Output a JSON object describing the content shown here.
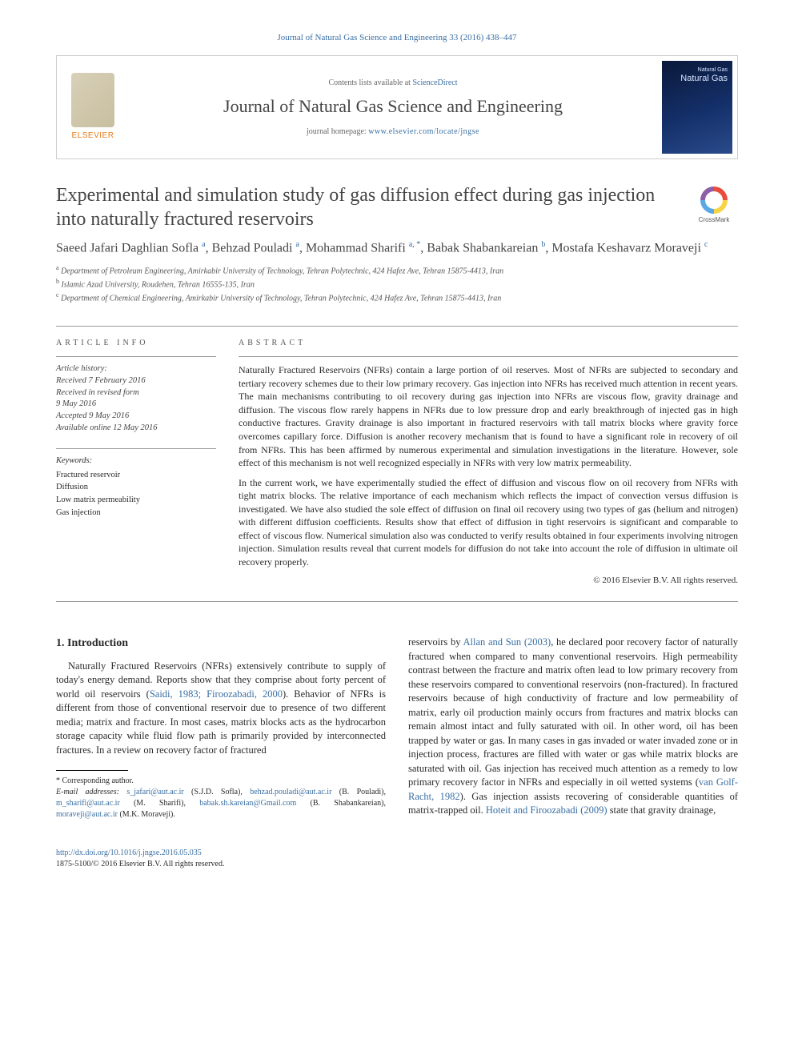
{
  "citation": "Journal of Natural Gas Science and Engineering 33 (2016) 438–447",
  "masthead": {
    "publisher": "ELSEVIER",
    "contents_prefix": "Contents lists available at ",
    "contents_link": "ScienceDirect",
    "journal_name": "Journal of Natural Gas Science and Engineering",
    "homepage_prefix": "journal homepage: ",
    "homepage_url": "www.elsevier.com/locate/jngse",
    "cover_small": "Natural Gas",
    "cover_big": "Natural Gas"
  },
  "crossmark_label": "CrossMark",
  "title": "Experimental and simulation study of gas diffusion effect during gas injection into naturally fractured reservoirs",
  "authors_html": "Saeed Jafari Daghlian Sofla <sup>a</sup>, Behzad Pouladi <sup>a</sup>, Mohammad Sharifi <sup>a, *</sup>, Babak Shabankareian <sup>b</sup>, Mostafa Keshavarz Moraveji <sup>c</sup>",
  "affiliations": [
    "a Department of Petroleum Engineering, Amirkabir University of Technology, Tehran Polytechnic, 424 Hafez Ave, Tehran 15875-4413, Iran",
    "b Islamic Azad University, Roudehen, Tehran 16555-135, Iran",
    "c Department of Chemical Engineering, Amirkabir University of Technology, Tehran Polytechnic, 424 Hafez Ave, Tehran 15875-4413, Iran"
  ],
  "labels": {
    "article_info": "ARTICLE INFO",
    "abstract": "ABSTRACT",
    "history": "Article history:",
    "keywords": "Keywords:"
  },
  "history": [
    "Received 7 February 2016",
    "Received in revised form",
    "9 May 2016",
    "Accepted 9 May 2016",
    "Available online 12 May 2016"
  ],
  "keywords": [
    "Fractured reservoir",
    "Diffusion",
    "Low matrix permeability",
    "Gas injection"
  ],
  "abstract": {
    "p1": "Naturally Fractured Reservoirs (NFRs) contain a large portion of oil reserves. Most of NFRs are subjected to secondary and tertiary recovery schemes due to their low primary recovery. Gas injection into NFRs has received much attention in recent years. The main mechanisms contributing to oil recovery during gas injection into NFRs are viscous flow, gravity drainage and diffusion. The viscous flow rarely happens in NFRs due to low pressure drop and early breakthrough of injected gas in high conductive fractures. Gravity drainage is also important in fractured reservoirs with tall matrix blocks where gravity force overcomes capillary force. Diffusion is another recovery mechanism that is found to have a significant role in recovery of oil from NFRs. This has been affirmed by numerous experimental and simulation investigations in the literature. However, sole effect of this mechanism is not well recognized especially in NFRs with very low matrix permeability.",
    "p2": "In the current work, we have experimentally studied the effect of diffusion and viscous flow on oil recovery from NFRs with tight matrix blocks. The relative importance of each mechanism which reflects the impact of convection versus diffusion is investigated. We have also studied the sole effect of diffusion on final oil recovery using two types of gas (helium and nitrogen) with different diffusion coefficients. Results show that effect of diffusion in tight reservoirs is significant and comparable to effect of viscous flow. Numerical simulation also was conducted to verify results obtained in four experiments involving nitrogen injection. Simulation results reveal that current models for diffusion do not take into account the role of diffusion in ultimate oil recovery properly."
  },
  "copyright": "© 2016 Elsevier B.V. All rights reserved.",
  "intro": {
    "heading": "1. Introduction",
    "col1": "Naturally Fractured Reservoirs (NFRs) extensively contribute to supply of today's energy demand. Reports show that they comprise about forty percent of world oil reservoirs (<span class=\"cite\">Saidi, 1983; Firoozabadi, 2000</span>). Behavior of NFRs is different from those of conventional reservoir due to presence of two different media; matrix and fracture. In most cases, matrix blocks acts as the hydrocarbon storage capacity while fluid flow path is primarily provided by interconnected fractures. In a review on recovery factor of fractured",
    "col2": "reservoirs by <span class=\"cite\">Allan and Sun (2003)</span>, he declared poor recovery factor of naturally fractured when compared to many conventional reservoirs. High permeability contrast between the fracture and matrix often lead to low primary recovery from these reservoirs compared to conventional reservoirs (non-fractured). In fractured reservoirs because of high conductivity of fracture and low permeability of matrix, early oil production mainly occurs from fractures and matrix blocks can remain almost intact and fully saturated with oil. In other word, oil has been trapped by water or gas. In many cases in gas invaded or water invaded zone or in injection process, fractures are filled with water or gas while matrix blocks are saturated with oil. Gas injection has received much attention as a remedy to low primary recovery factor in NFRs and especially in oil wetted systems (<span class=\"cite\">van Golf-Racht, 1982</span>). Gas injection assists recovering of considerable quantities of matrix-trapped oil. <span class=\"cite\">Hoteit and Firoozabadi (2009)</span> state that gravity drainage,"
  },
  "footnotes": {
    "corr": "* Corresponding author.",
    "emails_label": "E-mail addresses:",
    "emails": "s_jafari@aut.ac.ir (S.J.D. Sofla), behzad.pouladi@aut.ac.ir (B. Pouladi), m_sharifi@aut.ac.ir (M. Sharifi), babak.sh.kareian@Gmail.com (B. Shabankareian), moraveji@aut.ac.ir (M.K. Moraveji)."
  },
  "doi": {
    "url": "http://dx.doi.org/10.1016/j.jngse.2016.05.035",
    "issn_line": "1875-5100/© 2016 Elsevier B.V. All rights reserved."
  },
  "colors": {
    "link": "#3a6fa3",
    "text": "#2a2a2a",
    "orange": "#e67a1a"
  }
}
